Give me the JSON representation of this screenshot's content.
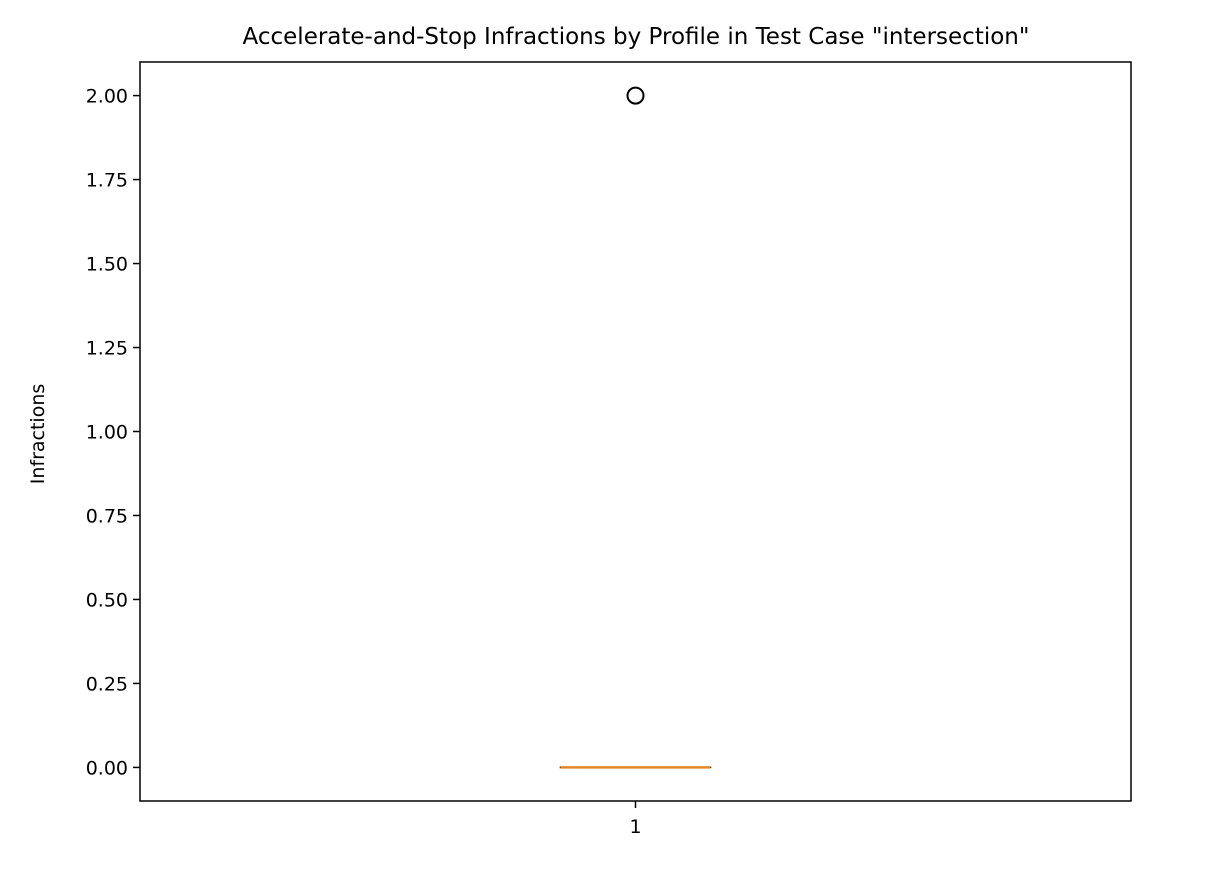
{
  "chart_data": {
    "type": "box",
    "title": "Accelerate-and-Stop Infractions by Profile in Test Case \"intersection\"",
    "xlabel": "",
    "ylabel": "Infractions",
    "ylim": [
      -0.1,
      2.1
    ],
    "yticks": [
      0.0,
      0.25,
      0.5,
      0.75,
      1.0,
      1.25,
      1.5,
      1.75,
      2.0
    ],
    "ytick_labels": [
      "0.00",
      "0.25",
      "0.50",
      "0.75",
      "1.00",
      "1.25",
      "1.50",
      "1.75",
      "2.00"
    ],
    "categories": [
      "1"
    ],
    "boxes": [
      {
        "category": "1",
        "q1": 0,
        "median": 0,
        "q3": 0,
        "whisker_low": 0,
        "whisker_high": 0,
        "outliers": [
          2
        ]
      }
    ],
    "grid": false,
    "colors": {
      "median": "#e08a2a",
      "box": "#000000",
      "outlier": "#000000"
    }
  }
}
